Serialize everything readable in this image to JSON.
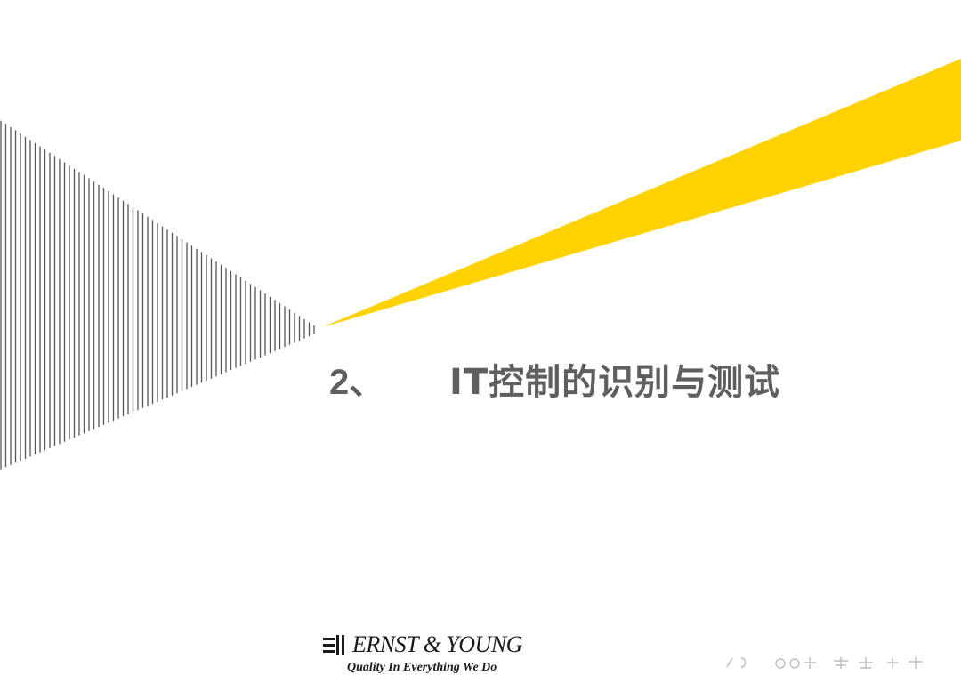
{
  "slide": {
    "title_number": "2、",
    "title_text": "IT控制的识别与测试"
  },
  "logo": {
    "name": "ERNST & YOUNG",
    "tagline": "Quality In Everything We Do"
  },
  "colors": {
    "accent_yellow": "#ffd200",
    "stripe_gray": "#555555",
    "title_gray": "#5f5f5f"
  },
  "icons": {
    "logo_mark": "ey-logo-mark-icon",
    "stripes": "vertical-stripes-triangle",
    "beam": "yellow-beam"
  }
}
